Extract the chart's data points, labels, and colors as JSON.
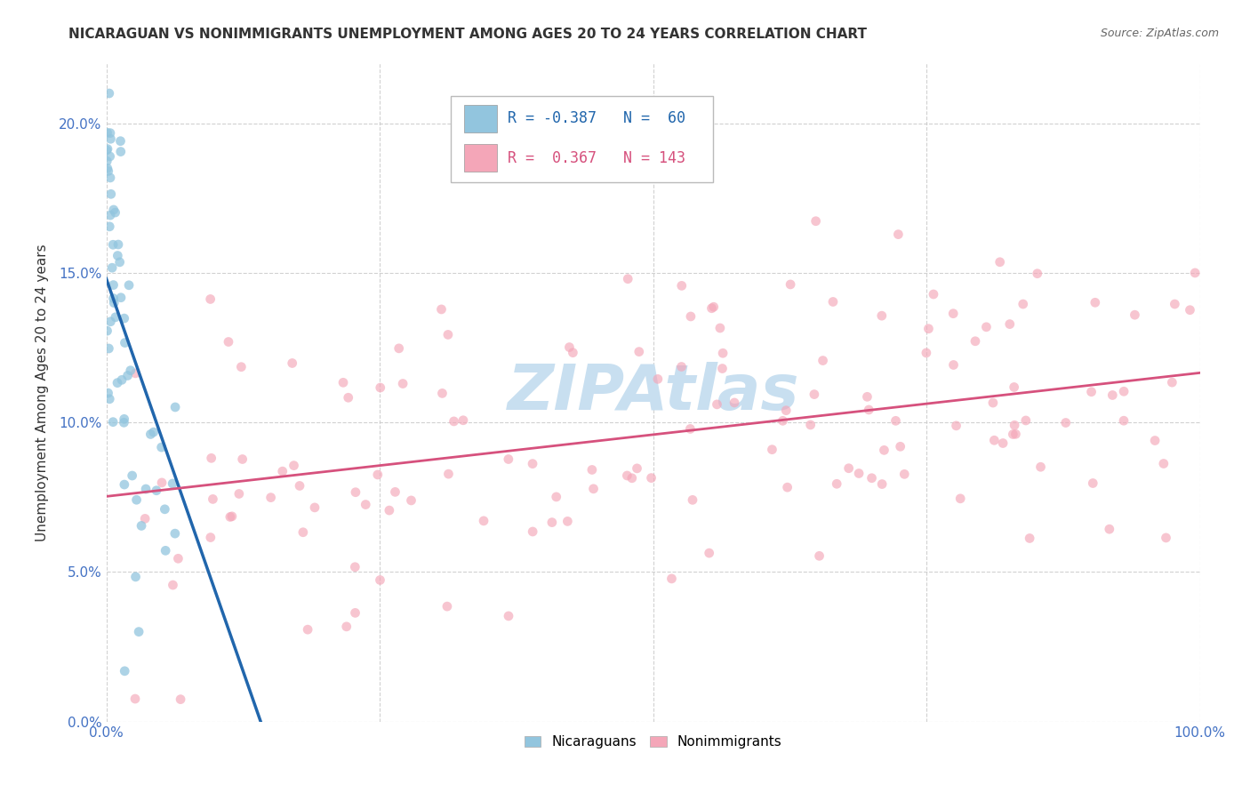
{
  "title": "NICARAGUAN VS NONIMMIGRANTS UNEMPLOYMENT AMONG AGES 20 TO 24 YEARS CORRELATION CHART",
  "source": "Source: ZipAtlas.com",
  "ylabel": "Unemployment Among Ages 20 to 24 years",
  "xlim": [
    0.0,
    100.0
  ],
  "ylim": [
    0.0,
    22.0
  ],
  "blue_R": -0.387,
  "blue_N": 60,
  "pink_R": 0.367,
  "pink_N": 143,
  "blue_color": "#92c5de",
  "pink_color": "#f4a6b8",
  "blue_line_color": "#2166ac",
  "pink_line_color": "#d6517d",
  "blue_scatter_alpha": 0.75,
  "pink_scatter_alpha": 0.65,
  "marker_size": 60,
  "legend_label_blue": "Nicaraguans",
  "legend_label_pink": "Nonimmigrants",
  "background_color": "#ffffff",
  "grid_color": "#cccccc",
  "ytick_values": [
    0.0,
    5.0,
    10.0,
    15.0,
    20.0
  ],
  "xtick_values": [
    0,
    25,
    50,
    75,
    100
  ],
  "watermark_text": "ZIPAtlas",
  "watermark_color": "#c8dff0",
  "title_fontsize": 11,
  "axis_tick_color": "#4472C4",
  "source_color": "#666666"
}
